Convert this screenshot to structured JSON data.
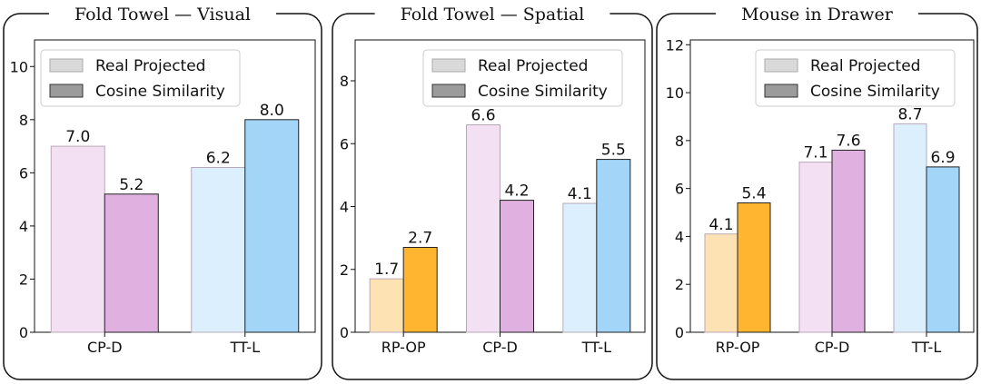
{
  "legend": {
    "items": [
      {
        "label": "Real Projected",
        "color": "#d9d9d9"
      },
      {
        "label": "Cosine Similarity",
        "color": "#9b9b9b"
      }
    ]
  },
  "chart_data": [
    {
      "type": "bar",
      "title": "Fold Towel — Visual",
      "categories": [
        "CP-D",
        "TT-L"
      ],
      "ylim": [
        0,
        11
      ],
      "yticks": [
        0,
        2,
        4,
        6,
        8,
        10
      ],
      "grid": false,
      "legend_position": "top-left",
      "series": [
        {
          "name": "Real Projected",
          "values": [
            7.0,
            6.2
          ],
          "colors": [
            "#f3e1f3",
            "#dceffc"
          ]
        },
        {
          "name": "Cosine Similarity",
          "values": [
            5.2,
            8.0
          ],
          "colors": [
            "#e0b0e0",
            "#a2d5f8"
          ]
        }
      ]
    },
    {
      "type": "bar",
      "title": "Fold Towel — Spatial",
      "categories": [
        "RP-OP",
        "CP-D",
        "TT-L"
      ],
      "ylim": [
        0,
        9.3
      ],
      "yticks": [
        0,
        2,
        4,
        6,
        8
      ],
      "grid": false,
      "legend_position": "top-right",
      "series": [
        {
          "name": "Real Projected",
          "values": [
            1.7,
            6.6,
            4.1
          ],
          "colors": [
            "#fde2b3",
            "#f3e1f3",
            "#dceffc"
          ]
        },
        {
          "name": "Cosine Similarity",
          "values": [
            2.7,
            4.2,
            5.5
          ],
          "colors": [
            "#ffb530",
            "#e0b0e0",
            "#a2d5f8"
          ]
        }
      ]
    },
    {
      "type": "bar",
      "title": "Mouse in Drawer",
      "categories": [
        "RP-OP",
        "CP-D",
        "TT-L"
      ],
      "ylim": [
        0,
        12.2
      ],
      "yticks": [
        0,
        2,
        4,
        6,
        8,
        10,
        12
      ],
      "grid": false,
      "legend_position": "top-right",
      "series": [
        {
          "name": "Real Projected",
          "values": [
            4.1,
            7.1,
            8.7
          ],
          "colors": [
            "#fde2b3",
            "#f3e1f3",
            "#dceffc"
          ]
        },
        {
          "name": "Cosine Similarity",
          "values": [
            5.4,
            7.6,
            6.9
          ],
          "colors": [
            "#ffb530",
            "#e0b0e0",
            "#a2d5f8"
          ]
        }
      ]
    }
  ]
}
